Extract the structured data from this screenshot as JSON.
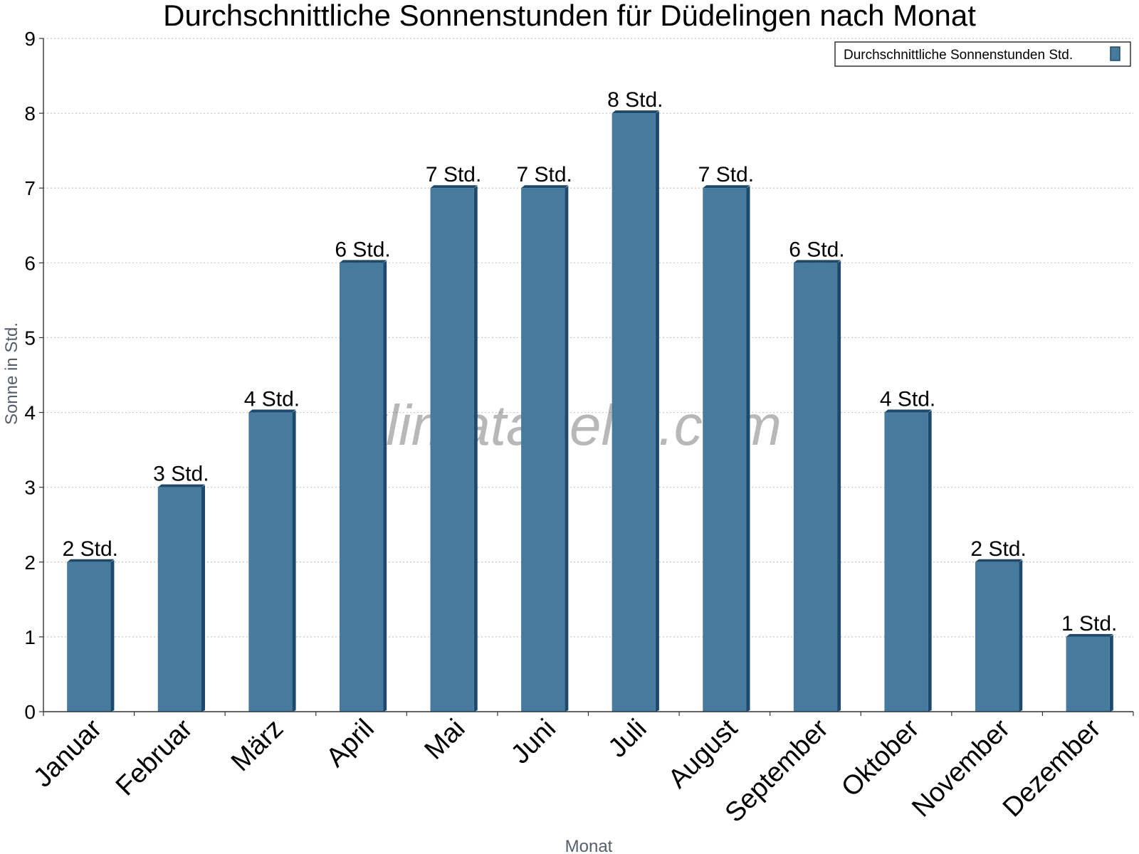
{
  "chart_data": {
    "type": "bar",
    "title": "Durchschnittliche Sonnenstunden für Düdelingen nach Monat",
    "xlabel": "Monat",
    "ylabel": "Sonne in Std.",
    "categories": [
      "Januar",
      "Februar",
      "März",
      "April",
      "Mai",
      "Juni",
      "Juli",
      "August",
      "September",
      "Oktober",
      "November",
      "Dezember"
    ],
    "series": [
      {
        "name": "Durchschnittliche Sonnenstunden Std.",
        "values": [
          2,
          3,
          4,
          6,
          7,
          7,
          8,
          7,
          6,
          4,
          2,
          1
        ],
        "labels": [
          "2 Std.",
          "3 Std.",
          "4 Std.",
          "6 Std.",
          "7 Std.",
          "7 Std.",
          "8 Std.",
          "7 Std.",
          "6 Std.",
          "4 Std.",
          "2 Std.",
          "1 Std."
        ],
        "color": "#477b9d",
        "edge_color": "#1d4a6c"
      }
    ],
    "ylim": [
      0,
      9
    ],
    "yticks": [
      0,
      1,
      2,
      3,
      4,
      5,
      6,
      7,
      8,
      9
    ],
    "grid": true,
    "legend_position": "top-right"
  },
  "watermark": "klimatabelle.com"
}
